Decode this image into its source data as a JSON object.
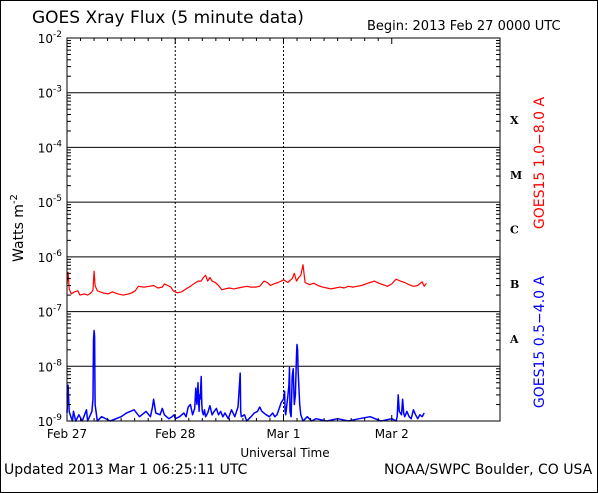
{
  "header": {
    "title": "GOES Xray Flux (5 minute data)",
    "begin": "Begin:  2013 Feb 27 0000 UTC"
  },
  "footer": {
    "updated": "Updated 2013 Mar  1 06:25:11 UTC",
    "credit": "NOAA/SWPC Boulder, CO USA"
  },
  "colors": {
    "long": "#ff0000",
    "short": "#0000ff",
    "axis": "#000000"
  },
  "chart_data": {
    "type": "line",
    "title": "GOES Xray Flux (5 minute data)",
    "xlabel": "Universal Time",
    "ylabel": "Watts m",
    "ylabel_exponent": "-2",
    "yscale": "log",
    "ylim": [
      1e-09,
      0.01
    ],
    "xlim_days": [
      0,
      4
    ],
    "x_ticks": [
      "Feb 27",
      "Feb 28",
      "Mar 1",
      "Mar 2"
    ],
    "y_ticks": [
      {
        "base": "10",
        "exp": "-9",
        "value": 1e-09
      },
      {
        "base": "10",
        "exp": "-8",
        "value": 1e-08
      },
      {
        "base": "10",
        "exp": "-7",
        "value": 1e-07
      },
      {
        "base": "10",
        "exp": "-6",
        "value": 1e-06
      },
      {
        "base": "10",
        "exp": "-5",
        "value": 1e-05
      },
      {
        "base": "10",
        "exp": "-4",
        "value": 0.0001
      },
      {
        "base": "10",
        "exp": "-3",
        "value": 0.001
      },
      {
        "base": "10",
        "exp": "-2",
        "value": 0.01
      }
    ],
    "flare_classes": [
      {
        "label": "A",
        "value": 3.16e-08
      },
      {
        "label": "B",
        "value": 3.16e-07
      },
      {
        "label": "C",
        "value": 3.16e-06
      },
      {
        "label": "M",
        "value": 3.16e-05
      },
      {
        "label": "X",
        "value": 0.000316
      }
    ],
    "grid": true,
    "series": [
      {
        "name": "GOES15 1.0−8.0 A",
        "color": "#ff0000",
        "points": [
          [
            0.0,
            3.2e-07
          ],
          [
            0.01,
            5.2e-07
          ],
          [
            0.02,
            2.6e-07
          ],
          [
            0.04,
            2.1e-07
          ],
          [
            0.07,
            2.3e-07
          ],
          [
            0.1,
            2.4e-07
          ],
          [
            0.12,
            2e-07
          ],
          [
            0.16,
            2.1e-07
          ],
          [
            0.19,
            2e-07
          ],
          [
            0.21,
            2.1e-07
          ],
          [
            0.23,
            2.3e-07
          ],
          [
            0.24,
            2.5e-07
          ],
          [
            0.25,
            5.5e-07
          ],
          [
            0.26,
            3e-07
          ],
          [
            0.28,
            2.4e-07
          ],
          [
            0.33,
            2.2e-07
          ],
          [
            0.38,
            2.1e-07
          ],
          [
            0.42,
            2.3e-07
          ],
          [
            0.47,
            2.1e-07
          ],
          [
            0.52,
            2e-07
          ],
          [
            0.57,
            2.1e-07
          ],
          [
            0.6,
            2.2e-07
          ],
          [
            0.63,
            2.4e-07
          ],
          [
            0.66,
            2.9e-07
          ],
          [
            0.71,
            2.8e-07
          ],
          [
            0.76,
            2.9e-07
          ],
          [
            0.8,
            3e-07
          ],
          [
            0.84,
            2.7e-07
          ],
          [
            0.88,
            2.8e-07
          ],
          [
            0.9,
            3.2e-07
          ],
          [
            0.93,
            3e-07
          ],
          [
            0.96,
            2.8e-07
          ],
          [
            0.98,
            2.4e-07
          ],
          [
            1.02,
            2.2e-07
          ],
          [
            1.06,
            2.3e-07
          ],
          [
            1.1,
            2.6e-07
          ],
          [
            1.14,
            2.9e-07
          ],
          [
            1.18,
            3.3e-07
          ],
          [
            1.21,
            3.6e-07
          ],
          [
            1.24,
            3.6e-07
          ],
          [
            1.26,
            4.2e-07
          ],
          [
            1.28,
            4.6e-07
          ],
          [
            1.3,
            3.6e-07
          ],
          [
            1.32,
            4.2e-07
          ],
          [
            1.34,
            3.6e-07
          ],
          [
            1.37,
            3.4e-07
          ],
          [
            1.4,
            3e-07
          ],
          [
            1.43,
            2.5e-07
          ],
          [
            1.46,
            2.6e-07
          ],
          [
            1.5,
            2.7e-07
          ],
          [
            1.54,
            2.6e-07
          ],
          [
            1.58,
            2.7e-07
          ],
          [
            1.62,
            2.8e-07
          ],
          [
            1.66,
            2.9e-07
          ],
          [
            1.7,
            2.8e-07
          ],
          [
            1.74,
            2.8e-07
          ],
          [
            1.78,
            2.9e-07
          ],
          [
            1.82,
            3.6e-07
          ],
          [
            1.85,
            3.4e-07
          ],
          [
            1.88,
            3e-07
          ],
          [
            1.91,
            3.2e-07
          ],
          [
            1.95,
            3.4e-07
          ],
          [
            1.98,
            3.6e-07
          ],
          [
            2.0,
            3.8e-07
          ],
          [
            2.02,
            3.6e-07
          ],
          [
            2.04,
            3.4e-07
          ],
          [
            2.06,
            3.7e-07
          ],
          [
            2.08,
            4e-07
          ],
          [
            2.1,
            5e-07
          ],
          [
            2.12,
            3.6e-07
          ],
          [
            2.14,
            4.2e-07
          ],
          [
            2.16,
            4.6e-07
          ],
          [
            2.18,
            7.2e-07
          ],
          [
            2.2,
            3.4e-07
          ],
          [
            2.24,
            3.1e-07
          ],
          [
            2.28,
            3.3e-07
          ],
          [
            2.32,
            3e-07
          ],
          [
            2.36,
            2.8e-07
          ],
          [
            2.4,
            2.7e-07
          ],
          [
            2.44,
            2.6e-07
          ],
          [
            2.48,
            2.7e-07
          ],
          [
            2.52,
            2.8e-07
          ],
          [
            2.56,
            2.7e-07
          ],
          [
            2.6,
            2.9e-07
          ],
          [
            2.64,
            2.8e-07
          ],
          [
            2.68,
            2.9e-07
          ],
          [
            2.72,
            3e-07
          ],
          [
            2.76,
            3.2e-07
          ],
          [
            2.8,
            3.4e-07
          ],
          [
            2.84,
            3.6e-07
          ],
          [
            2.88,
            3.3e-07
          ],
          [
            2.92,
            3.1e-07
          ],
          [
            2.96,
            2.9e-07
          ],
          [
            3.0,
            3.2e-07
          ],
          [
            3.04,
            3.9e-07
          ],
          [
            3.08,
            3.6e-07
          ],
          [
            3.12,
            3.4e-07
          ],
          [
            3.16,
            3.1e-07
          ],
          [
            3.2,
            2.9e-07
          ],
          [
            3.24,
            3e-07
          ],
          [
            3.28,
            3.5e-07
          ],
          [
            3.3,
            2.9e-07
          ],
          [
            3.32,
            3.3e-07
          ]
        ]
      },
      {
        "name": "GOES15 0.5−4.0 A",
        "color": "#0000ff",
        "points": [
          [
            0.0,
            1.4e-09
          ],
          [
            0.01,
            4.5e-09
          ],
          [
            0.02,
            1.5e-09
          ],
          [
            0.03,
            1.3e-09
          ],
          [
            0.05,
            1e-09
          ],
          [
            0.06,
            1.5e-09
          ],
          [
            0.08,
            1e-09
          ],
          [
            0.11,
            1.3e-09
          ],
          [
            0.14,
            1e-09
          ],
          [
            0.18,
            1.6e-09
          ],
          [
            0.19,
            1e-09
          ],
          [
            0.23,
            1.5e-09
          ],
          [
            0.24,
            2.5e-09
          ],
          [
            0.245,
            3e-08
          ],
          [
            0.25,
            4.5e-08
          ],
          [
            0.255,
            3.5e-08
          ],
          [
            0.26,
            2e-09
          ],
          [
            0.28,
            1e-09
          ],
          [
            0.32,
            1.2e-09
          ],
          [
            0.4,
            1e-09
          ],
          [
            0.5,
            1.2e-09
          ],
          [
            0.55,
            1.4e-09
          ],
          [
            0.62,
            1.6e-09
          ],
          [
            0.67,
            1.2e-09
          ],
          [
            0.73,
            1.5e-09
          ],
          [
            0.77,
            1.2e-09
          ],
          [
            0.79,
            1.8e-09
          ],
          [
            0.8,
            2.5e-09
          ],
          [
            0.82,
            1.4e-09
          ],
          [
            0.86,
            1.3e-09
          ],
          [
            0.88,
            1.7e-09
          ],
          [
            0.9,
            1.3e-09
          ],
          [
            0.94,
            1.1e-09
          ],
          [
            0.97,
            1.2e-09
          ],
          [
            0.99,
            1.3e-09
          ],
          [
            1.0,
            1.1e-09
          ],
          [
            1.04,
            1.2e-09
          ],
          [
            1.08,
            1.4e-09
          ],
          [
            1.1,
            1.2e-09
          ],
          [
            1.12,
            1.8e-09
          ],
          [
            1.14,
            2e-09
          ],
          [
            1.16,
            1.3e-09
          ],
          [
            1.18,
            1.7e-09
          ],
          [
            1.19,
            4e-09
          ],
          [
            1.2,
            2e-09
          ],
          [
            1.21,
            5e-09
          ],
          [
            1.215,
            2.5e-09
          ],
          [
            1.22,
            1.5e-09
          ],
          [
            1.225,
            3e-09
          ],
          [
            1.23,
            2.5e-09
          ],
          [
            1.235,
            4e-09
          ],
          [
            1.24,
            6.5e-09
          ],
          [
            1.245,
            2e-09
          ],
          [
            1.25,
            1.5e-09
          ],
          [
            1.26,
            1.3e-09
          ],
          [
            1.27,
            1.6e-09
          ],
          [
            1.28,
            1.2e-09
          ],
          [
            1.3,
            1.4e-09
          ],
          [
            1.32,
            1.9e-09
          ],
          [
            1.34,
            1.3e-09
          ],
          [
            1.36,
            1.5e-09
          ],
          [
            1.38,
            1.7e-09
          ],
          [
            1.4,
            1.3e-09
          ],
          [
            1.42,
            1.5e-09
          ],
          [
            1.44,
            1.2e-09
          ],
          [
            1.46,
            1.4e-09
          ],
          [
            1.49,
            1.1e-09
          ],
          [
            1.52,
            1.6e-09
          ],
          [
            1.55,
            1.2e-09
          ],
          [
            1.58,
            1.8e-09
          ],
          [
            1.6,
            7.5e-09
          ],
          [
            1.605,
            1.5e-09
          ],
          [
            1.61,
            1.2e-09
          ],
          [
            1.64,
            1.3e-09
          ],
          [
            1.66,
            1e-09
          ],
          [
            1.7,
            1.2e-09
          ],
          [
            1.73,
            1.4e-09
          ],
          [
            1.76,
            1.5e-09
          ],
          [
            1.78,
            1.8e-09
          ],
          [
            1.8,
            1.5e-09
          ],
          [
            1.84,
            1.3e-09
          ],
          [
            1.87,
            1.2e-09
          ],
          [
            1.9,
            1.4e-09
          ],
          [
            1.92,
            1.2e-09
          ],
          [
            1.94,
            1.3e-09
          ],
          [
            1.96,
            1.7e-09
          ],
          [
            1.98,
            2.2e-09
          ],
          [
            2.0,
            2.5e-09
          ],
          [
            2.01,
            3.5e-09
          ],
          [
            2.015,
            1.5e-09
          ],
          [
            2.02,
            1.3e-09
          ],
          [
            2.04,
            2.8e-09
          ],
          [
            2.05,
            4.5e-09
          ],
          [
            2.055,
            9.5e-09
          ],
          [
            2.06,
            1.5e-09
          ],
          [
            2.07,
            1.2e-09
          ],
          [
            2.08,
            6.5e-09
          ],
          [
            2.09,
            9e-09
          ],
          [
            2.1,
            2e-09
          ],
          [
            2.11,
            3e-09
          ],
          [
            2.12,
            1.6e-08
          ],
          [
            2.125,
            2.5e-08
          ],
          [
            2.13,
            2e-08
          ],
          [
            2.135,
            8.5e-09
          ],
          [
            2.14,
            5e-09
          ],
          [
            2.15,
            2e-09
          ],
          [
            2.16,
            1.3e-09
          ],
          [
            2.18,
            1e-09
          ],
          [
            2.22,
            1.2e-09
          ],
          [
            2.26,
            1e-09
          ],
          [
            2.3,
            1.1e-09
          ],
          [
            2.4,
            1e-09
          ],
          [
            2.5,
            1.1e-09
          ],
          [
            2.6,
            1e-09
          ],
          [
            2.7,
            1.1e-09
          ],
          [
            2.8,
            1.2e-09
          ],
          [
            2.9,
            1e-09
          ],
          [
            3.0,
            1.1e-09
          ],
          [
            3.04,
            1e-09
          ],
          [
            3.05,
            1.2e-09
          ],
          [
            3.06,
            3e-09
          ],
          [
            3.07,
            1.5e-09
          ],
          [
            3.09,
            1.3e-09
          ],
          [
            3.1,
            2.5e-09
          ],
          [
            3.11,
            1.4e-09
          ],
          [
            3.12,
            1.2e-09
          ],
          [
            3.14,
            1.5e-09
          ],
          [
            3.16,
            1.2e-09
          ],
          [
            3.18,
            1.1e-09
          ],
          [
            3.2,
            1.6e-09
          ],
          [
            3.22,
            1.3e-09
          ],
          [
            3.24,
            1.1e-09
          ],
          [
            3.26,
            1.3e-09
          ],
          [
            3.28,
            1.2e-09
          ],
          [
            3.3,
            1.4e-09
          ]
        ]
      }
    ]
  }
}
